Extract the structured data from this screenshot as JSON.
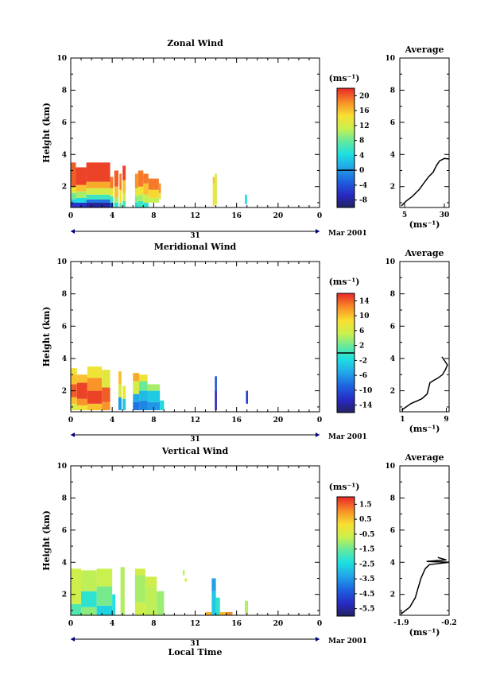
{
  "chart_data": [
    {
      "type": "heatmap",
      "title": "Zonal Wind",
      "ylabel": "Height (km)",
      "xlabel": "",
      "x_ticks": [
        "0",
        "4",
        "8",
        "12",
        "16",
        "20",
        "0"
      ],
      "y_ticks": [
        "2",
        "4",
        "6",
        "8",
        "10"
      ],
      "xlim": [
        0,
        24
      ],
      "ylim": [
        0.7,
        10
      ],
      "date_label": "31",
      "month_label": "Mar 2001",
      "colorbar": {
        "unit": "(ms⁻¹)",
        "ticks": [
          "-8",
          "-4",
          "0",
          "4",
          "8",
          "12",
          "16",
          "20"
        ],
        "range": [
          -10,
          22
        ],
        "marker": 0
      },
      "profile": {
        "title": "Average",
        "xlabel": "(ms⁻¹)",
        "x_ticks": [
          "5",
          "30"
        ],
        "xlim": [
          2,
          33
        ],
        "y_ticks": [
          "2",
          "4",
          "6",
          "8",
          "10"
        ],
        "points": [
          [
            3,
            0.8
          ],
          [
            6,
            1.1
          ],
          [
            10,
            1.4
          ],
          [
            14,
            1.8
          ],
          [
            17,
            2.2
          ],
          [
            20,
            2.6
          ],
          [
            23,
            2.9
          ],
          [
            25,
            3.3
          ],
          [
            27,
            3.6
          ],
          [
            30,
            3.75
          ],
          [
            33,
            3.72
          ]
        ]
      },
      "field": [
        {
          "x0": 0.0,
          "x1": 0.5,
          "segs": [
            [
              0.7,
              1.0,
              -6
            ],
            [
              1.0,
              1.2,
              3
            ],
            [
              1.2,
              1.6,
              8
            ],
            [
              1.6,
              2.0,
              14
            ],
            [
              2.0,
              3.5,
              20
            ]
          ]
        },
        {
          "x0": 0.5,
          "x1": 1.5,
          "segs": [
            [
              0.7,
              1.0,
              -6
            ],
            [
              1.0,
              1.3,
              4
            ],
            [
              1.3,
              1.7,
              10
            ],
            [
              1.7,
              2.1,
              16
            ],
            [
              2.1,
              3.2,
              21
            ]
          ]
        },
        {
          "x0": 1.5,
          "x1": 3.8,
          "segs": [
            [
              0.7,
              1.0,
              -8
            ],
            [
              1.0,
              1.2,
              -2
            ],
            [
              1.2,
              1.5,
              6
            ],
            [
              1.5,
              1.9,
              12
            ],
            [
              1.9,
              2.3,
              17
            ],
            [
              2.3,
              3.5,
              21
            ]
          ]
        },
        {
          "x0": 3.8,
          "x1": 4.1,
          "segs": [
            [
              0.7,
              1.0,
              -4
            ],
            [
              1.0,
              1.4,
              6
            ],
            [
              1.4,
              1.9,
              13
            ],
            [
              1.9,
              2.6,
              19
            ]
          ]
        },
        {
          "x0": 4.2,
          "x1": 4.6,
          "segs": [
            [
              0.7,
              1.0,
              5
            ],
            [
              1.0,
              1.3,
              10
            ],
            [
              1.3,
              2.0,
              16
            ],
            [
              2.0,
              3.0,
              20
            ]
          ]
        },
        {
          "x0": 4.7,
          "x1": 4.9,
          "segs": [
            [
              0.7,
              1.0,
              8
            ],
            [
              1.0,
              1.8,
              14
            ],
            [
              1.8,
              2.8,
              19
            ]
          ]
        },
        {
          "x0": 5.0,
          "x1": 5.3,
          "segs": [
            [
              0.7,
              1.1,
              6
            ],
            [
              1.1,
              1.6,
              12
            ],
            [
              1.6,
              2.4,
              16
            ],
            [
              2.4,
              3.3,
              21
            ]
          ]
        },
        {
          "x0": 6.2,
          "x1": 6.5,
          "segs": [
            [
              0.7,
              1.0,
              4
            ],
            [
              1.0,
              1.4,
              9
            ],
            [
              1.4,
              1.9,
              13
            ],
            [
              1.9,
              2.8,
              18
            ]
          ]
        },
        {
          "x0": 6.5,
          "x1": 7.0,
          "segs": [
            [
              0.7,
              1.1,
              6
            ],
            [
              1.1,
              1.5,
              10
            ],
            [
              1.5,
              2.0,
              14
            ],
            [
              2.0,
              3.0,
              19
            ]
          ]
        },
        {
          "x0": 7.0,
          "x1": 7.5,
          "segs": [
            [
              0.7,
              1.0,
              5
            ],
            [
              1.0,
              1.5,
              11
            ],
            [
              1.5,
              2.2,
              16
            ],
            [
              2.2,
              2.8,
              19
            ]
          ]
        },
        {
          "x0": 7.5,
          "x1": 8.5,
          "segs": [
            [
              1.0,
              1.3,
              11
            ],
            [
              1.3,
              1.8,
              15
            ],
            [
              1.8,
              2.5,
              19
            ]
          ]
        },
        {
          "x0": 8.5,
          "x1": 8.7,
          "segs": [
            [
              1.2,
              1.6,
              13
            ],
            [
              1.6,
              2.2,
              18
            ]
          ]
        },
        {
          "x0": 13.7,
          "x1": 13.9,
          "segs": [
            [
              0.8,
              2.2,
              14
            ],
            [
              2.2,
              2.6,
              16
            ]
          ]
        },
        {
          "x0": 13.9,
          "x1": 14.1,
          "segs": [
            [
              0.9,
              2.8,
              12
            ]
          ]
        },
        {
          "x0": 16.8,
          "x1": 17.0,
          "segs": [
            [
              0.9,
              1.5,
              4
            ]
          ]
        }
      ]
    },
    {
      "type": "heatmap",
      "title": "Meridional Wind",
      "ylabel": "Height (km)",
      "xlabel": "",
      "x_ticks": [
        "0",
        "4",
        "8",
        "12",
        "16",
        "20",
        "0"
      ],
      "y_ticks": [
        "2",
        "4",
        "6",
        "8",
        "10"
      ],
      "xlim": [
        0,
        24
      ],
      "ylim": [
        0.7,
        10
      ],
      "date_label": "31",
      "month_label": "Mar 2001",
      "colorbar": {
        "unit": "(ms⁻¹)",
        "ticks": [
          "-14",
          "-10",
          "-6",
          "-2",
          "2",
          "6",
          "10",
          "14"
        ],
        "range": [
          -16,
          16
        ],
        "marker": 0
      },
      "profile": {
        "title": "Average",
        "xlabel": "(ms⁻¹)",
        "x_ticks": [
          "1",
          "9"
        ],
        "xlim": [
          0.5,
          9.5
        ],
        "y_ticks": [
          "2",
          "4",
          "6",
          "8",
          "10"
        ],
        "points": [
          [
            0.8,
            0.8
          ],
          [
            2.5,
            1.2
          ],
          [
            4.5,
            1.5
          ],
          [
            5.5,
            1.8
          ],
          [
            6.0,
            2.5
          ],
          [
            7.5,
            2.8
          ],
          [
            8.3,
            3.0
          ],
          [
            8.8,
            3.3
          ],
          [
            9.2,
            3.6
          ],
          [
            8.6,
            3.9
          ],
          [
            8.2,
            4.1
          ]
        ]
      },
      "field": [
        {
          "x0": 0.0,
          "x1": 0.6,
          "segs": [
            [
              0.8,
              1.2,
              6
            ],
            [
              1.2,
              1.6,
              10
            ],
            [
              1.6,
              2.4,
              14
            ],
            [
              2.4,
              3.0,
              10
            ],
            [
              3.0,
              3.4,
              8
            ]
          ]
        },
        {
          "x0": 0.6,
          "x1": 1.6,
          "segs": [
            [
              0.8,
              1.1,
              8
            ],
            [
              1.1,
              1.5,
              12
            ],
            [
              1.5,
              2.5,
              15
            ],
            [
              2.5,
              3.0,
              10
            ]
          ]
        },
        {
          "x0": 1.6,
          "x1": 3.0,
          "segs": [
            [
              0.8,
              1.2,
              10
            ],
            [
              1.2,
              2.0,
              15
            ],
            [
              2.0,
              2.8,
              12
            ],
            [
              2.8,
              3.5,
              8
            ]
          ]
        },
        {
          "x0": 3.0,
          "x1": 3.8,
          "segs": [
            [
              0.8,
              1.3,
              12
            ],
            [
              1.3,
              2.2,
              14
            ],
            [
              2.2,
              3.3,
              7
            ]
          ]
        },
        {
          "x0": 4.6,
          "x1": 4.9,
          "segs": [
            [
              0.8,
              1.6,
              -6
            ],
            [
              1.6,
              2.4,
              6
            ],
            [
              2.4,
              3.2,
              10
            ]
          ]
        },
        {
          "x0": 5.0,
          "x1": 5.3,
          "segs": [
            [
              0.8,
              1.5,
              -3
            ],
            [
              1.5,
              2.3,
              8
            ]
          ]
        },
        {
          "x0": 6.0,
          "x1": 6.6,
          "segs": [
            [
              0.8,
              1.3,
              -8
            ],
            [
              1.3,
              1.8,
              -5
            ],
            [
              1.8,
              2.6,
              6
            ],
            [
              2.6,
              3.1,
              11
            ]
          ]
        },
        {
          "x0": 6.6,
          "x1": 7.4,
          "segs": [
            [
              0.8,
              1.4,
              -7
            ],
            [
              1.4,
              2.0,
              -4
            ],
            [
              2.0,
              2.6,
              2
            ],
            [
              2.6,
              3.0,
              8
            ]
          ]
        },
        {
          "x0": 7.4,
          "x1": 8.6,
          "segs": [
            [
              0.8,
              1.3,
              -6
            ],
            [
              1.3,
              2.0,
              -3
            ],
            [
              2.0,
              2.4,
              4
            ]
          ]
        },
        {
          "x0": 8.6,
          "x1": 9.0,
          "segs": [
            [
              0.8,
              1.4,
              -2
            ]
          ]
        },
        {
          "x0": 13.9,
          "x1": 14.1,
          "segs": [
            [
              0.8,
              2.0,
              -13
            ],
            [
              2.0,
              2.9,
              -10
            ]
          ]
        },
        {
          "x0": 16.9,
          "x1": 17.1,
          "segs": [
            [
              1.2,
              2.0,
              -11
            ]
          ]
        }
      ]
    },
    {
      "type": "heatmap",
      "title": "Vertical Wind",
      "ylabel": "Height (km)",
      "xlabel": "Local Time",
      "x_ticks": [
        "0",
        "4",
        "8",
        "12",
        "16",
        "20",
        "0"
      ],
      "y_ticks": [
        "2",
        "4",
        "6",
        "8",
        "10"
      ],
      "xlim": [
        0,
        24
      ],
      "ylim": [
        0.7,
        10
      ],
      "date_label": "31",
      "month_label": "Mar 2001",
      "colorbar": {
        "unit": "(ms⁻¹)",
        "ticks": [
          "-5.5",
          "-4.5",
          "-3.5",
          "-2.5",
          "-1.5",
          "-0.5",
          "0.5",
          "1.5"
        ],
        "range": [
          -6,
          2
        ],
        "marker": null
      },
      "profile": {
        "title": "Average",
        "xlabel": "(ms⁻¹)",
        "x_ticks": [
          "-1.9",
          "-0.2"
        ],
        "xlim": [
          -1.95,
          -0.2
        ],
        "y_ticks": [
          "2",
          "4",
          "6",
          "8",
          "10"
        ],
        "points": [
          [
            -1.9,
            0.8
          ],
          [
            -1.6,
            1.2
          ],
          [
            -1.4,
            1.8
          ],
          [
            -1.3,
            2.4
          ],
          [
            -1.2,
            3.0
          ],
          [
            -1.05,
            3.6
          ],
          [
            -0.9,
            3.85
          ],
          [
            -0.2,
            4.0
          ],
          [
            -1.0,
            4.05
          ],
          [
            -0.3,
            4.15
          ],
          [
            -0.6,
            4.3
          ]
        ]
      },
      "field": [
        {
          "x0": 0.0,
          "x1": 1.0,
          "segs": [
            [
              0.7,
              1.4,
              -1.8
            ],
            [
              1.4,
              3.6,
              -0.6
            ]
          ]
        },
        {
          "x0": 1.0,
          "x1": 2.5,
          "segs": [
            [
              0.7,
              1.2,
              -1.2
            ],
            [
              1.2,
              2.2,
              -2.2
            ],
            [
              2.2,
              3.5,
              -0.8
            ]
          ]
        },
        {
          "x0": 2.5,
          "x1": 4.0,
          "segs": [
            [
              0.7,
              1.3,
              -2.6
            ],
            [
              1.3,
              2.5,
              -1.4
            ],
            [
              2.5,
              3.6,
              -0.7
            ]
          ]
        },
        {
          "x0": 4.0,
          "x1": 4.3,
          "segs": [
            [
              0.7,
              2.0,
              -2.4
            ]
          ]
        },
        {
          "x0": 4.8,
          "x1": 5.2,
          "segs": [
            [
              0.7,
              3.7,
              -0.9
            ]
          ]
        },
        {
          "x0": 6.2,
          "x1": 7.2,
          "segs": [
            [
              0.7,
              1.5,
              -0.6
            ],
            [
              1.5,
              3.2,
              -1.0
            ],
            [
              3.2,
              3.6,
              -0.5
            ]
          ]
        },
        {
          "x0": 7.2,
          "x1": 8.3,
          "segs": [
            [
              0.7,
              2.5,
              -0.8
            ],
            [
              2.5,
              3.1,
              -0.6
            ]
          ]
        },
        {
          "x0": 8.3,
          "x1": 9.0,
          "segs": [
            [
              0.7,
              2.2,
              -1.1
            ]
          ]
        },
        {
          "x0": 10.8,
          "x1": 11.0,
          "segs": [
            [
              3.2,
              3.5,
              -0.8
            ]
          ]
        },
        {
          "x0": 11.0,
          "x1": 11.2,
          "segs": [
            [
              2.8,
              3.0,
              -0.7
            ]
          ]
        },
        {
          "x0": 13.0,
          "x1": 13.6,
          "segs": [
            [
              0.7,
              0.9,
              0.7
            ]
          ]
        },
        {
          "x0": 13.6,
          "x1": 14.0,
          "segs": [
            [
              0.7,
              2.2,
              -2.8
            ],
            [
              2.2,
              3.0,
              -3.4
            ]
          ]
        },
        {
          "x0": 14.0,
          "x1": 14.4,
          "segs": [
            [
              0.7,
              1.8,
              -2.2
            ]
          ]
        },
        {
          "x0": 14.4,
          "x1": 15.0,
          "segs": [
            [
              0.7,
              0.9,
              0.6
            ]
          ]
        },
        {
          "x0": 15.0,
          "x1": 15.6,
          "segs": [
            [
              0.7,
              0.9,
              1.1
            ]
          ]
        },
        {
          "x0": 16.8,
          "x1": 17.1,
          "segs": [
            [
              0.8,
              1.6,
              -0.9
            ]
          ]
        }
      ]
    }
  ]
}
